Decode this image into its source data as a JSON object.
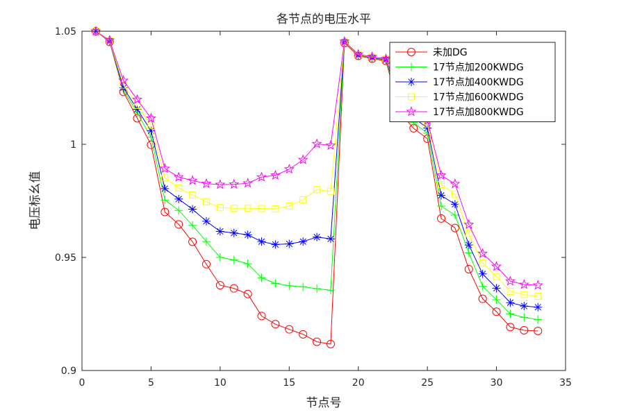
{
  "chart_data": {
    "type": "line",
    "title": "各节点的电压水平",
    "xlabel": "节点号",
    "ylabel": "电压标幺值",
    "xlim": [
      0,
      35
    ],
    "ylim": [
      0.9,
      1.05
    ],
    "xticks": [
      0,
      5,
      10,
      15,
      20,
      25,
      30,
      35
    ],
    "yticks": [
      0.9,
      0.95,
      1.0,
      1.05
    ],
    "xtick_labels": [
      "0",
      "5",
      "10",
      "15",
      "20",
      "25",
      "30",
      "35"
    ],
    "ytick_labels": [
      "0.9",
      "0.95",
      "1",
      "1.05"
    ],
    "grid": false,
    "legend_position": "top-right",
    "x": [
      1,
      2,
      3,
      4,
      5,
      6,
      7,
      8,
      9,
      10,
      11,
      12,
      13,
      14,
      15,
      16,
      17,
      18,
      19,
      20,
      21,
      22,
      23,
      24,
      25,
      26,
      27,
      28,
      29,
      30,
      31,
      32,
      33
    ],
    "series": [
      {
        "name": "未加DG",
        "color": "#ff0000",
        "marker": "circle",
        "values": [
          1.05,
          1.0453,
          1.0232,
          1.0115,
          0.9998,
          0.9701,
          0.9646,
          0.9569,
          0.947,
          0.9377,
          0.9363,
          0.9338,
          0.9241,
          0.9205,
          0.9182,
          0.916,
          0.9127,
          0.9117,
          1.0448,
          1.0391,
          1.0379,
          1.0369,
          1.0141,
          1.0071,
          1.0025,
          0.9672,
          0.963,
          0.9448,
          0.9317,
          0.926,
          0.9192,
          0.9178,
          0.9175
        ]
      },
      {
        "name": "17节点加200KWDG",
        "color": "#00ff00",
        "marker": "plus",
        "values": [
          1.05,
          1.0455,
          1.024,
          1.0138,
          1.0032,
          0.9754,
          0.9708,
          0.9642,
          0.957,
          0.95,
          0.9489,
          0.9472,
          0.941,
          0.9385,
          0.9375,
          0.937,
          0.9362,
          0.9355,
          1.045,
          1.0393,
          1.0381,
          1.0372,
          1.0165,
          1.0096,
          1.0049,
          0.9727,
          0.9687,
          0.952,
          0.9372,
          0.9313,
          0.925,
          0.9235,
          0.9225
        ]
      },
      {
        "name": "17节点加400KWDG",
        "color": "#0000ff",
        "marker": "asterisk",
        "values": [
          1.05,
          1.0457,
          1.025,
          1.0155,
          1.006,
          0.9804,
          0.9758,
          0.9713,
          0.966,
          0.9615,
          0.9608,
          0.96,
          0.957,
          0.9557,
          0.956,
          0.957,
          0.959,
          0.9582,
          1.0452,
          1.0395,
          1.0383,
          1.0375,
          1.0185,
          1.0118,
          1.0072,
          0.9774,
          0.9735,
          0.9555,
          0.9427,
          0.9364,
          0.93,
          0.9285,
          0.928
        ]
      },
      {
        "name": "17节点加600KWDG",
        "color": "#ffff00",
        "marker": "square",
        "values": [
          1.05,
          1.0458,
          1.0262,
          1.0172,
          1.0085,
          0.9852,
          0.9807,
          0.9776,
          0.9746,
          0.972,
          0.9717,
          0.9717,
          0.9716,
          0.9715,
          0.9727,
          0.9755,
          0.98,
          0.9792,
          1.0453,
          1.0396,
          1.0385,
          1.0377,
          1.02,
          1.0135,
          1.009,
          0.9822,
          0.978,
          0.9605,
          0.9475,
          0.9415,
          0.935,
          0.9335,
          0.9328
        ]
      },
      {
        "name": "17节点加800KWDG",
        "color": "#ff00ff",
        "marker": "star",
        "values": [
          1.05,
          1.046,
          1.0282,
          1.0198,
          1.0115,
          0.9893,
          0.9855,
          0.984,
          0.9826,
          0.9822,
          0.9823,
          0.9828,
          0.9855,
          0.9863,
          0.989,
          0.9932,
          1.0002,
          0.9995,
          1.0455,
          1.0398,
          1.0387,
          1.0378,
          1.0215,
          1.015,
          1.0105,
          0.9863,
          0.9825,
          0.9645,
          0.9517,
          0.946,
          0.9395,
          0.938,
          0.9377
        ]
      }
    ]
  }
}
